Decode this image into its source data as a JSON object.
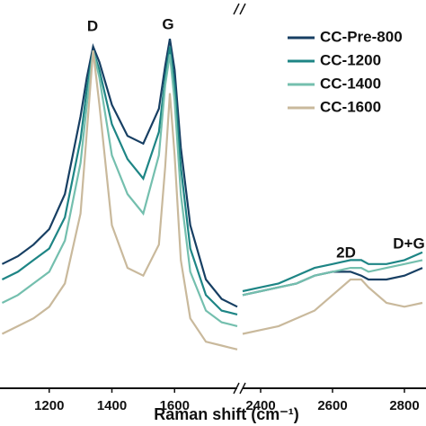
{
  "chart_data": [
    {
      "type": "line",
      "xlabel": "Raman shift (cm⁻¹)",
      "annotations": [
        "D",
        "G"
      ],
      "x": [
        1050,
        1100,
        1150,
        1200,
        1250,
        1300,
        1320,
        1340,
        1360,
        1400,
        1450,
        1500,
        1550,
        1570,
        1585,
        1600,
        1620,
        1650,
        1700,
        1750,
        1800
      ],
      "xlim": [
        1043,
        1800
      ],
      "xticks": [
        1200,
        1400,
        1600
      ],
      "ylim": [
        0,
        1
      ],
      "series": [
        {
          "name": "CC-Pre-800",
          "color": "#173f63",
          "values": [
            0.32,
            0.34,
            0.37,
            0.41,
            0.5,
            0.7,
            0.8,
            0.88,
            0.84,
            0.73,
            0.65,
            0.63,
            0.72,
            0.83,
            0.9,
            0.82,
            0.62,
            0.42,
            0.28,
            0.23,
            0.21
          ]
        },
        {
          "name": "CC-1200",
          "color": "#1e8585",
          "values": [
            0.28,
            0.3,
            0.33,
            0.36,
            0.44,
            0.64,
            0.77,
            0.87,
            0.82,
            0.68,
            0.59,
            0.54,
            0.66,
            0.8,
            0.88,
            0.78,
            0.57,
            0.36,
            0.24,
            0.2,
            0.19
          ]
        },
        {
          "name": "CC-1400",
          "color": "#74bfae",
          "values": [
            0.22,
            0.24,
            0.27,
            0.3,
            0.38,
            0.58,
            0.73,
            0.87,
            0.8,
            0.6,
            0.5,
            0.45,
            0.6,
            0.78,
            0.86,
            0.74,
            0.5,
            0.3,
            0.2,
            0.17,
            0.16
          ]
        },
        {
          "name": "CC-1600",
          "color": "#c9b99c",
          "values": [
            0.14,
            0.16,
            0.18,
            0.21,
            0.27,
            0.45,
            0.66,
            0.87,
            0.73,
            0.42,
            0.31,
            0.29,
            0.37,
            0.57,
            0.76,
            0.6,
            0.33,
            0.18,
            0.12,
            0.11,
            0.1
          ]
        }
      ]
    },
    {
      "type": "line",
      "annotations": [
        "2D",
        "D+G"
      ],
      "x": [
        2350,
        2400,
        2450,
        2500,
        2550,
        2600,
        2650,
        2680,
        2700,
        2750,
        2800,
        2850
      ],
      "xlim": [
        2350,
        2860
      ],
      "xticks": [
        2400,
        2600,
        2800
      ],
      "ylim": [
        0,
        1
      ],
      "series": [
        {
          "name": "CC-Pre-800",
          "color": "#173f63",
          "values": [
            0.24,
            0.25,
            0.26,
            0.27,
            0.29,
            0.3,
            0.3,
            0.29,
            0.28,
            0.28,
            0.29,
            0.31
          ]
        },
        {
          "name": "CC-1200",
          "color": "#1e8585",
          "values": [
            0.25,
            0.26,
            0.27,
            0.29,
            0.31,
            0.32,
            0.33,
            0.33,
            0.32,
            0.32,
            0.33,
            0.35
          ]
        },
        {
          "name": "CC-1400",
          "color": "#74bfae",
          "values": [
            0.24,
            0.25,
            0.26,
            0.27,
            0.29,
            0.3,
            0.31,
            0.31,
            0.3,
            0.31,
            0.32,
            0.33
          ]
        },
        {
          "name": "CC-1600",
          "color": "#c9b99c",
          "values": [
            0.14,
            0.15,
            0.16,
            0.18,
            0.2,
            0.24,
            0.28,
            0.28,
            0.26,
            0.22,
            0.21,
            0.22
          ]
        }
      ]
    }
  ]
}
